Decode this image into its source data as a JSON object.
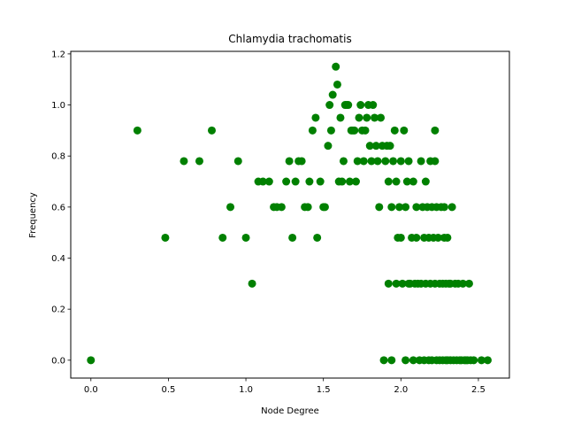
{
  "chart_data": {
    "type": "scatter",
    "title": "Chlamydia trachomatis",
    "xlabel": "Node Degree",
    "ylabel": "Frequency",
    "xlim": [
      -0.13,
      2.7
    ],
    "ylim": [
      -0.07,
      1.21
    ],
    "xticks": [
      "0.0",
      "0.5",
      "1.0",
      "1.5",
      "2.0",
      "2.5"
    ],
    "xtick_values": [
      0.0,
      0.5,
      1.0,
      1.5,
      2.0,
      2.5
    ],
    "yticks": [
      "0.0",
      "0.2",
      "0.4",
      "0.6",
      "0.8",
      "1.0",
      "1.2"
    ],
    "ytick_values": [
      0.0,
      0.2,
      0.4,
      0.6,
      0.8,
      1.0,
      1.2
    ],
    "grid": false,
    "marker_color": "#008000",
    "series": [
      {
        "points": [
          [
            0.0,
            0.0
          ],
          [
            0.3,
            0.9
          ],
          [
            0.48,
            0.48
          ],
          [
            0.6,
            0.78
          ],
          [
            0.7,
            0.78
          ],
          [
            0.78,
            0.9
          ],
          [
            0.85,
            0.48
          ],
          [
            0.9,
            0.6
          ],
          [
            0.95,
            0.78
          ],
          [
            1.0,
            0.48
          ],
          [
            1.04,
            0.3
          ],
          [
            1.08,
            0.7
          ],
          [
            1.11,
            0.7
          ],
          [
            1.15,
            0.7
          ],
          [
            1.18,
            0.6
          ],
          [
            1.2,
            0.6
          ],
          [
            1.23,
            0.6
          ],
          [
            1.26,
            0.7
          ],
          [
            1.28,
            0.78
          ],
          [
            1.3,
            0.48
          ],
          [
            1.32,
            0.7
          ],
          [
            1.34,
            0.78
          ],
          [
            1.36,
            0.78
          ],
          [
            1.38,
            0.6
          ],
          [
            1.4,
            0.6
          ],
          [
            1.41,
            0.7
          ],
          [
            1.43,
            0.9
          ],
          [
            1.45,
            0.95
          ],
          [
            1.46,
            0.48
          ],
          [
            1.48,
            0.7
          ],
          [
            1.5,
            0.6
          ],
          [
            1.51,
            0.6
          ],
          [
            1.53,
            0.84
          ],
          [
            1.54,
            1.0
          ],
          [
            1.55,
            0.9
          ],
          [
            1.56,
            1.04
          ],
          [
            1.58,
            1.15
          ],
          [
            1.59,
            1.08
          ],
          [
            1.6,
            0.7
          ],
          [
            1.61,
            0.95
          ],
          [
            1.62,
            0.7
          ],
          [
            1.63,
            0.78
          ],
          [
            1.64,
            1.0
          ],
          [
            1.65,
            1.0
          ],
          [
            1.66,
            1.0
          ],
          [
            1.67,
            0.7
          ],
          [
            1.68,
            0.9
          ],
          [
            1.69,
            0.9
          ],
          [
            1.7,
            0.9
          ],
          [
            1.71,
            0.7
          ],
          [
            1.72,
            0.78
          ],
          [
            1.73,
            0.95
          ],
          [
            1.74,
            1.0
          ],
          [
            1.75,
            0.9
          ],
          [
            1.76,
            0.78
          ],
          [
            1.77,
            0.9
          ],
          [
            1.78,
            0.95
          ],
          [
            1.79,
            1.0
          ],
          [
            1.8,
            0.84
          ],
          [
            1.81,
            0.78
          ],
          [
            1.82,
            1.0
          ],
          [
            1.83,
            0.95
          ],
          [
            1.84,
            0.84
          ],
          [
            1.85,
            0.78
          ],
          [
            1.86,
            0.6
          ],
          [
            1.87,
            0.95
          ],
          [
            1.88,
            0.84
          ],
          [
            1.89,
            0.0
          ],
          [
            1.9,
            0.78
          ],
          [
            1.91,
            0.84
          ],
          [
            1.92,
            0.7
          ],
          [
            1.92,
            0.3
          ],
          [
            1.93,
            0.84
          ],
          [
            1.94,
            0.6
          ],
          [
            1.94,
            0.0
          ],
          [
            1.95,
            0.78
          ],
          [
            1.96,
            0.9
          ],
          [
            1.97,
            0.7
          ],
          [
            1.97,
            0.3
          ],
          [
            1.98,
            0.48
          ],
          [
            1.99,
            0.6
          ],
          [
            2.0,
            0.78
          ],
          [
            2.0,
            0.48
          ],
          [
            2.01,
            0.3
          ],
          [
            2.02,
            0.9
          ],
          [
            2.03,
            0.6
          ],
          [
            2.03,
            0.0
          ],
          [
            2.04,
            0.7
          ],
          [
            2.05,
            0.78
          ],
          [
            2.05,
            0.3
          ],
          [
            2.06,
            0.3
          ],
          [
            2.07,
            0.48
          ],
          [
            2.08,
            0.7
          ],
          [
            2.08,
            0.0
          ],
          [
            2.09,
            0.3
          ],
          [
            2.1,
            0.6
          ],
          [
            2.1,
            0.48
          ],
          [
            2.11,
            0.3
          ],
          [
            2.12,
            0.0
          ],
          [
            2.13,
            0.78
          ],
          [
            2.13,
            0.3
          ],
          [
            2.14,
            0.6
          ],
          [
            2.15,
            0.48
          ],
          [
            2.15,
            0.0
          ],
          [
            2.16,
            0.7
          ],
          [
            2.16,
            0.3
          ],
          [
            2.17,
            0.6
          ],
          [
            2.18,
            0.48
          ],
          [
            2.18,
            0.0
          ],
          [
            2.19,
            0.78
          ],
          [
            2.19,
            0.3
          ],
          [
            2.2,
            0.6
          ],
          [
            2.2,
            0.0
          ],
          [
            2.21,
            0.48
          ],
          [
            2.22,
            0.78
          ],
          [
            2.22,
            0.3
          ],
          [
            2.22,
            0.9
          ],
          [
            2.23,
            0.6
          ],
          [
            2.23,
            0.0
          ],
          [
            2.24,
            0.48
          ],
          [
            2.25,
            0.3
          ],
          [
            2.25,
            0.0
          ],
          [
            2.26,
            0.6
          ],
          [
            2.27,
            0.3
          ],
          [
            2.27,
            0.0
          ],
          [
            2.28,
            0.48
          ],
          [
            2.28,
            0.6
          ],
          [
            2.29,
            0.0
          ],
          [
            2.29,
            0.3
          ],
          [
            2.3,
            0.48
          ],
          [
            2.3,
            0.0
          ],
          [
            2.31,
            0.3
          ],
          [
            2.32,
            0.0
          ],
          [
            2.32,
            0.3
          ],
          [
            2.33,
            0.6
          ],
          [
            2.34,
            0.0
          ],
          [
            2.35,
            0.3
          ],
          [
            2.36,
            0.0
          ],
          [
            2.37,
            0.3
          ],
          [
            2.38,
            0.0
          ],
          [
            2.39,
            0.0
          ],
          [
            2.4,
            0.3
          ],
          [
            2.41,
            0.0
          ],
          [
            2.42,
            0.0
          ],
          [
            2.43,
            0.0
          ],
          [
            2.44,
            0.3
          ],
          [
            2.45,
            0.0
          ],
          [
            2.47,
            0.0
          ],
          [
            2.52,
            0.0
          ],
          [
            2.56,
            0.0
          ]
        ]
      }
    ]
  }
}
